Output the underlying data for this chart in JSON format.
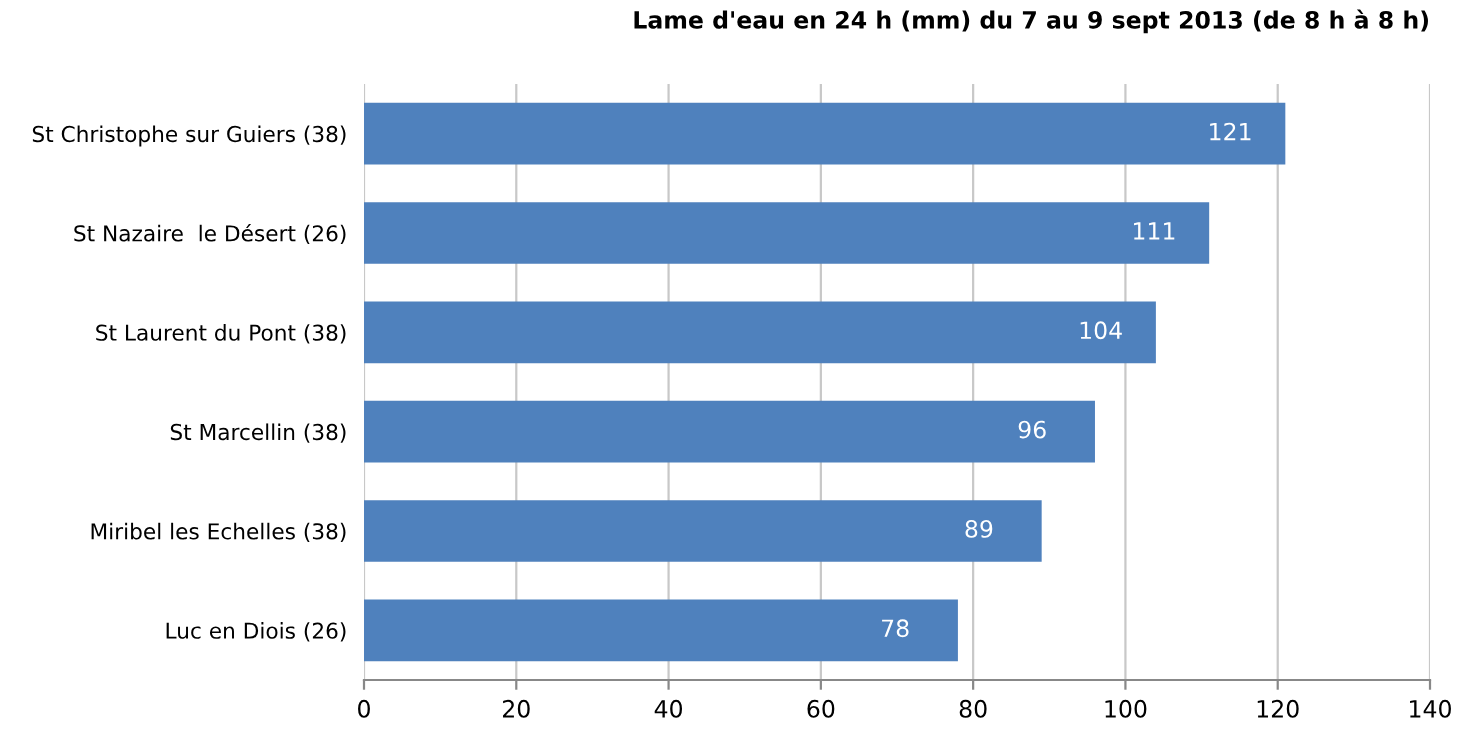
{
  "chart_data": {
    "type": "bar",
    "orientation": "horizontal",
    "title": "Lame d'eau en 24 h (mm) du 7 au 9 sept 2013 (de 8 h à 8 h)",
    "categories": [
      "St Christophe sur Guiers (38)",
      "St Nazaire  le Désert (26)",
      "St Laurent du Pont (38)",
      "St Marcellin (38)",
      "Miribel les Echelles (38)",
      "Luc en Diois (26)"
    ],
    "values": [
      121,
      111,
      104,
      96,
      89,
      78
    ],
    "color": "#4f81bd",
    "xlim": [
      0,
      140
    ],
    "xticks": [
      0,
      20,
      40,
      60,
      80,
      100,
      120,
      140
    ],
    "grid": "x",
    "data_labels": true
  }
}
